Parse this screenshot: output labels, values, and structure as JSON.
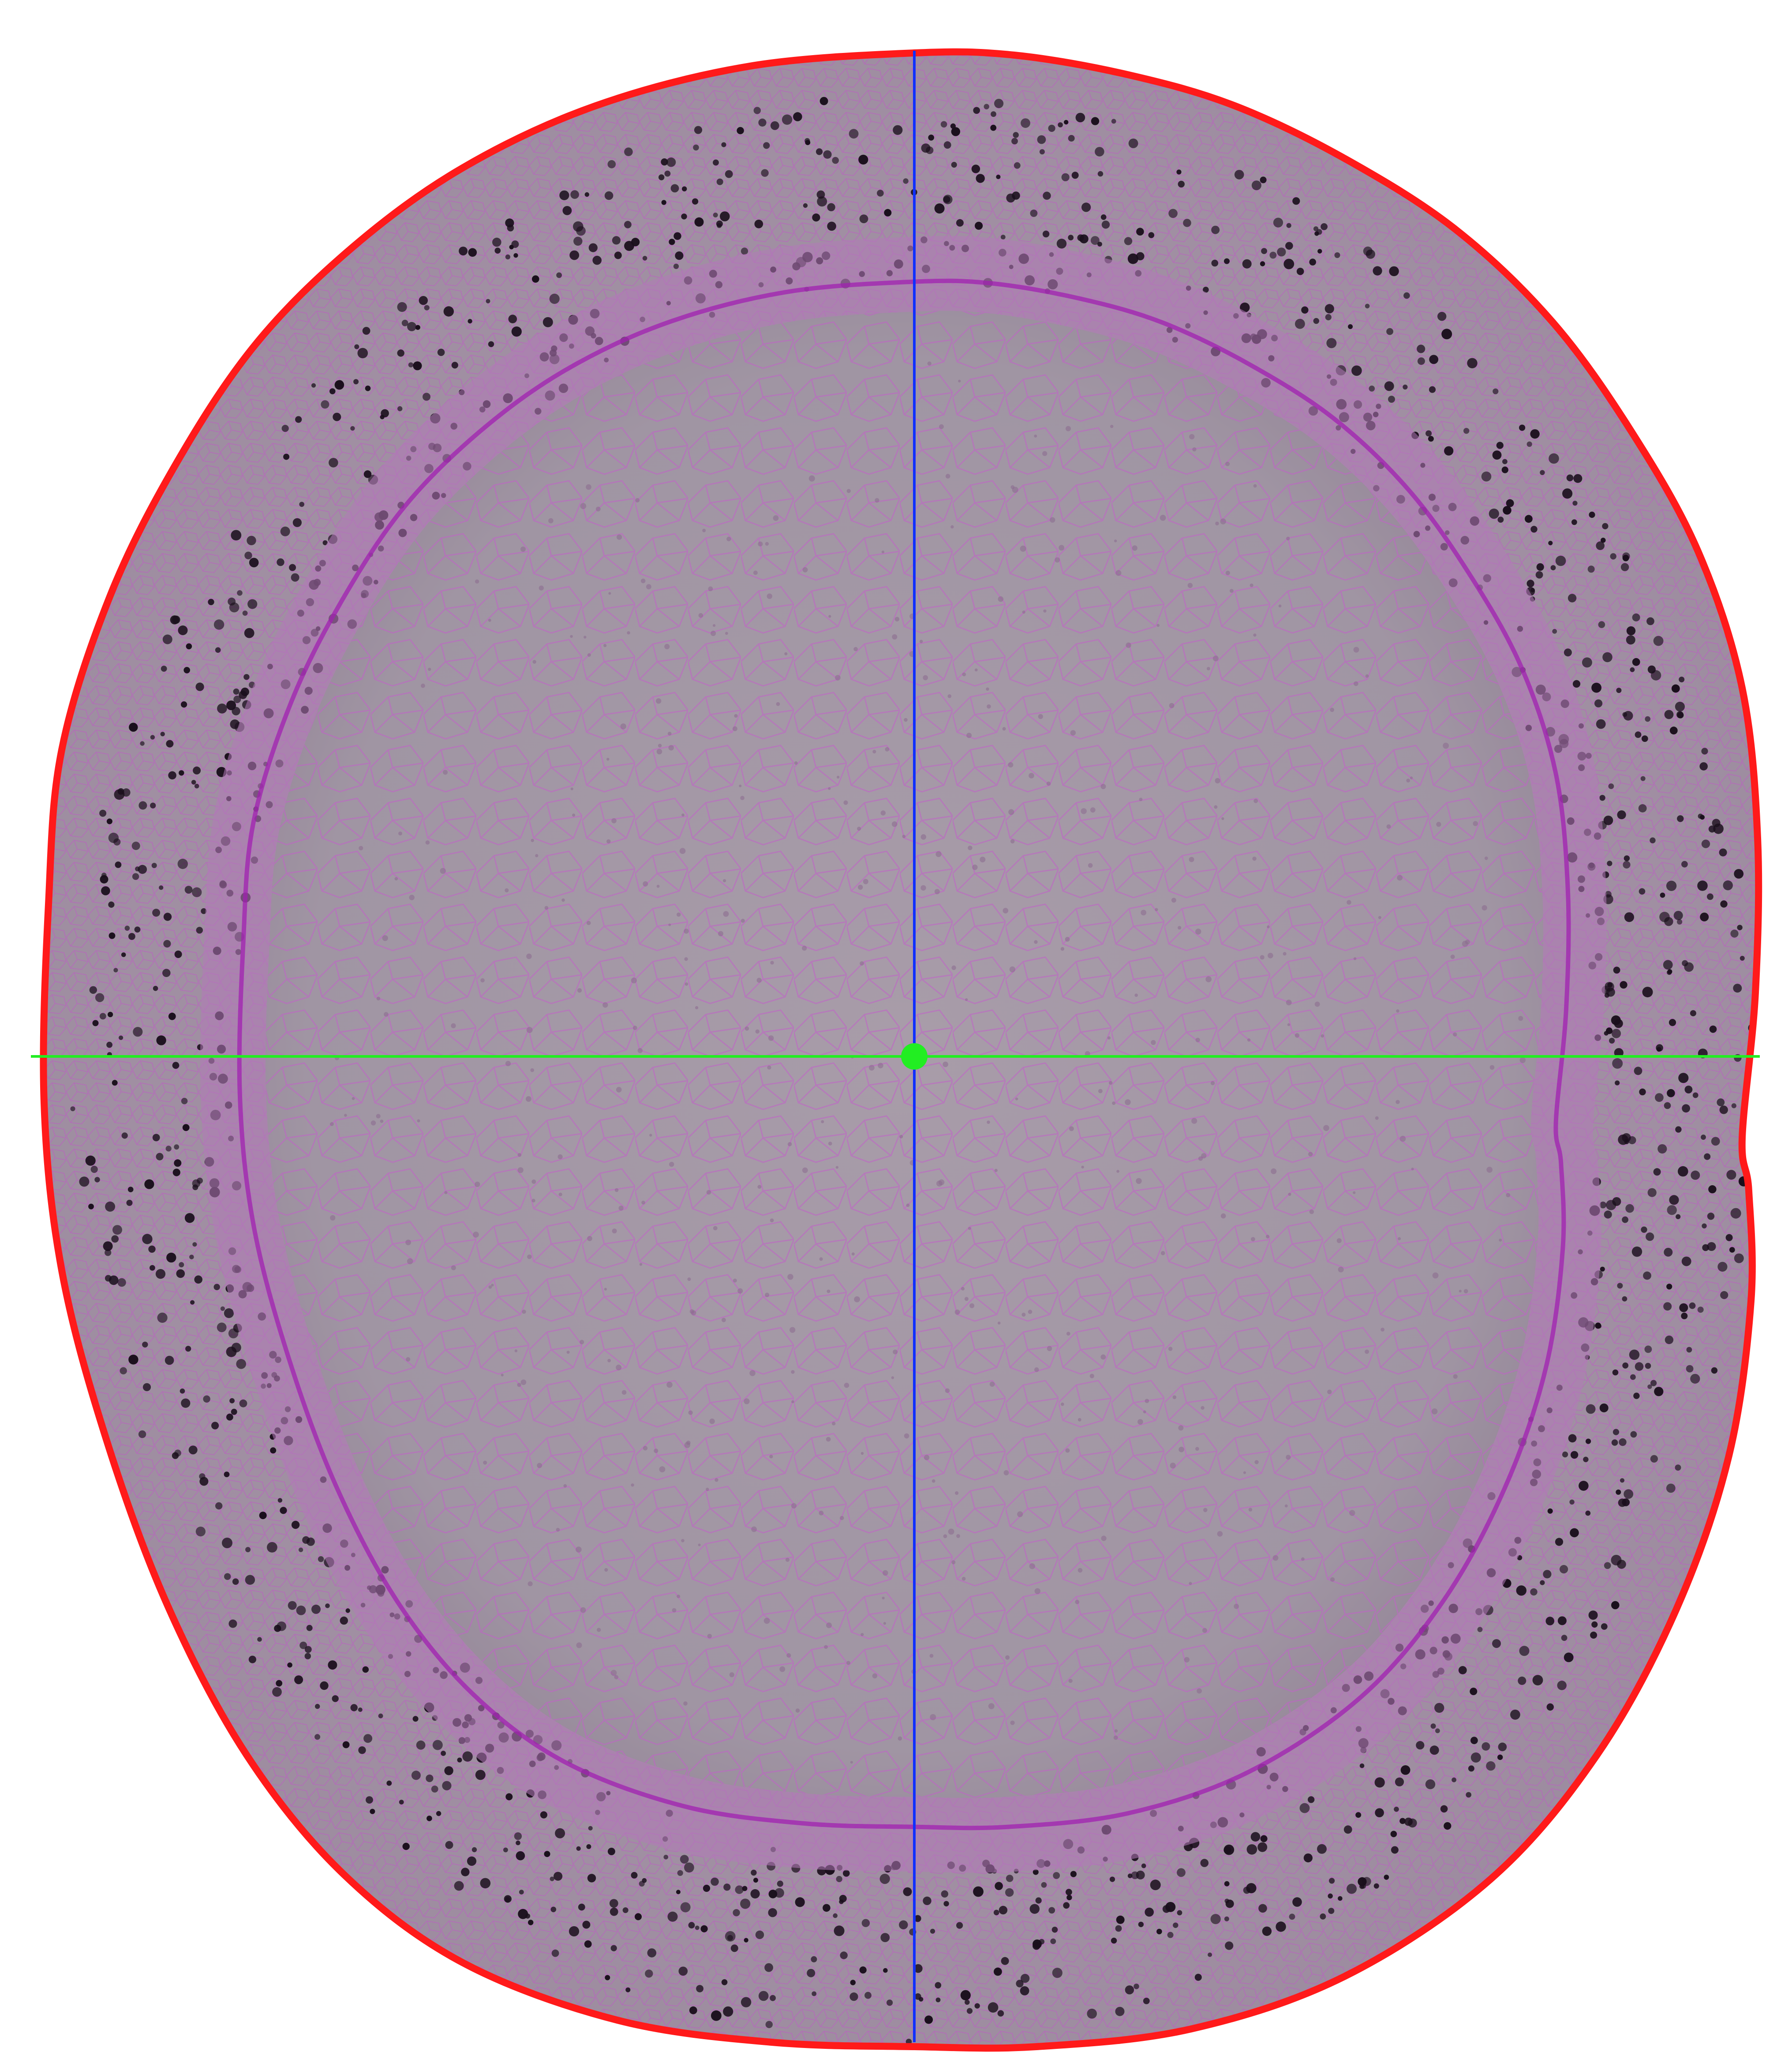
{
  "image": {
    "subject": "",
    "background_color": "#ffffff"
  },
  "colors": {
    "outline": "#ff1a1a",
    "vertical_axis": "#1030ff",
    "horizontal_axis": "#22ee22",
    "center_marker": "#22ee22",
    "tissue_fill": "#9a8a9c",
    "pith_fill": "#a69ba8",
    "cell_walls": "#c058c8",
    "starch_grains": "#1a0f1c"
  }
}
